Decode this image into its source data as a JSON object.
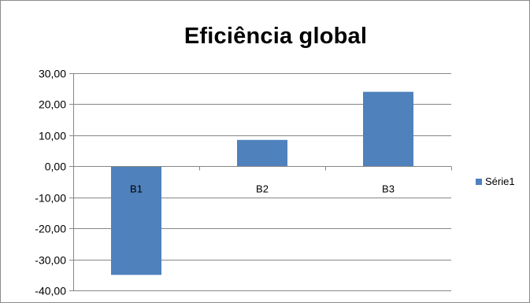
{
  "chart_data": {
    "type": "bar",
    "title": "Eficiência global",
    "xlabel": "",
    "ylabel": "",
    "categories": [
      "B1",
      "B2",
      "B3"
    ],
    "series": [
      {
        "name": "Série1",
        "values": [
          -35.0,
          8.5,
          24.0
        ],
        "color": "#4f81bd"
      }
    ],
    "ylim": [
      -40,
      30
    ],
    "yticks": [
      30,
      20,
      10,
      0,
      -10,
      -20,
      -30,
      -40
    ],
    "ytick_labels": [
      "30,00",
      "20,00",
      "10,00",
      "0,00",
      "-10,00",
      "-20,00",
      "-30,00",
      "-40,00"
    ],
    "grid": true,
    "legend_position": "right"
  },
  "colors": {
    "bar": "#4f81bd",
    "grid": "#868686",
    "frame": "#8c8c8c"
  }
}
